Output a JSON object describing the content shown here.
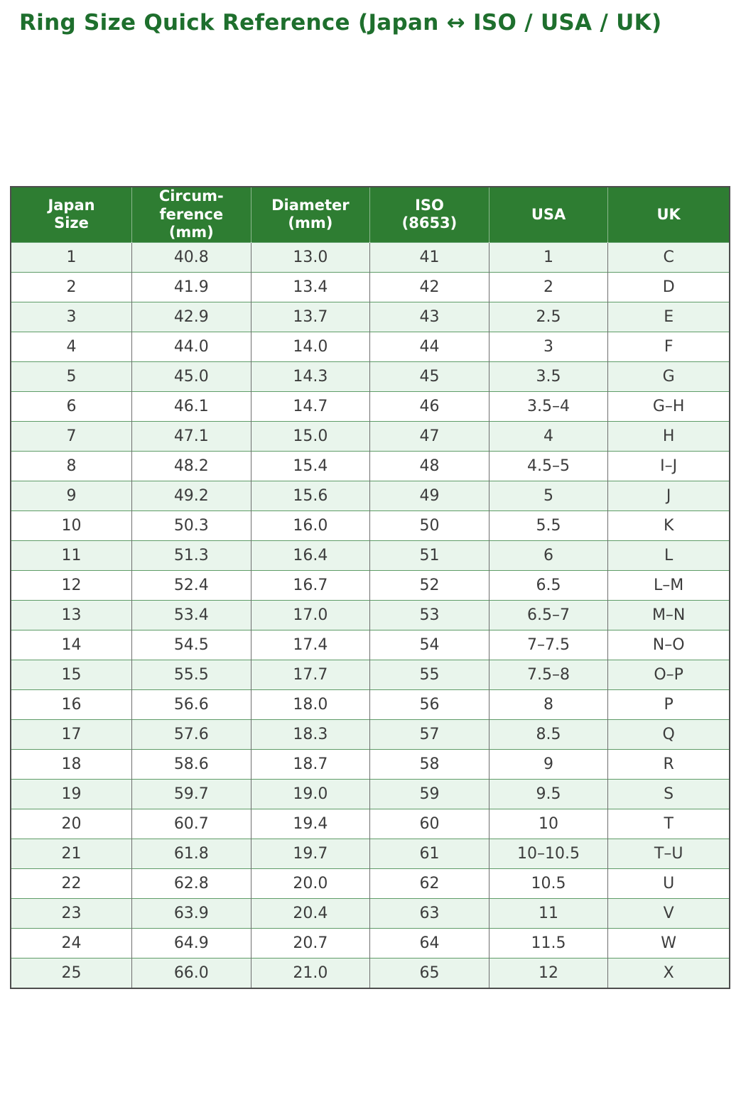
{
  "page": {
    "title": "Ring Size Quick Reference (Japan ↔ ISO / USA / UK)"
  },
  "colors": {
    "title_green": "#1e6f2d",
    "header_green": "#2e7d32",
    "row_alt_green": "#e9f5ec",
    "row_line_green": "#5f9c68",
    "cell_text": "#3c3c3c"
  },
  "chart_data": {
    "type": "table",
    "title": "Ring Size Quick Reference (Japan ↔ ISO / USA / UK)",
    "columns": [
      "Japan\nSize",
      "Circum-\nference\n(mm)",
      "Diameter\n(mm)",
      "ISO\n(8653)",
      "USA",
      "UK"
    ],
    "rows": [
      [
        "1",
        "40.8",
        "13.0",
        "41",
        "1",
        "C"
      ],
      [
        "2",
        "41.9",
        "13.4",
        "42",
        "2",
        "D"
      ],
      [
        "3",
        "42.9",
        "13.7",
        "43",
        "2.5",
        "E"
      ],
      [
        "4",
        "44.0",
        "14.0",
        "44",
        "3",
        "F"
      ],
      [
        "5",
        "45.0",
        "14.3",
        "45",
        "3.5",
        "G"
      ],
      [
        "6",
        "46.1",
        "14.7",
        "46",
        "3.5–4",
        "G–H"
      ],
      [
        "7",
        "47.1",
        "15.0",
        "47",
        "4",
        "H"
      ],
      [
        "8",
        "48.2",
        "15.4",
        "48",
        "4.5–5",
        "I–J"
      ],
      [
        "9",
        "49.2",
        "15.6",
        "49",
        "5",
        "J"
      ],
      [
        "10",
        "50.3",
        "16.0",
        "50",
        "5.5",
        "K"
      ],
      [
        "11",
        "51.3",
        "16.4",
        "51",
        "6",
        "L"
      ],
      [
        "12",
        "52.4",
        "16.7",
        "52",
        "6.5",
        "L–M"
      ],
      [
        "13",
        "53.4",
        "17.0",
        "53",
        "6.5–7",
        "M–N"
      ],
      [
        "14",
        "54.5",
        "17.4",
        "54",
        "7–7.5",
        "N–O"
      ],
      [
        "15",
        "55.5",
        "17.7",
        "55",
        "7.5–8",
        "O–P"
      ],
      [
        "16",
        "56.6",
        "18.0",
        "56",
        "8",
        "P"
      ],
      [
        "17",
        "57.6",
        "18.3",
        "57",
        "8.5",
        "Q"
      ],
      [
        "18",
        "58.6",
        "18.7",
        "58",
        "9",
        "R"
      ],
      [
        "19",
        "59.7",
        "19.0",
        "59",
        "9.5",
        "S"
      ],
      [
        "20",
        "60.7",
        "19.4",
        "60",
        "10",
        "T"
      ],
      [
        "21",
        "61.8",
        "19.7",
        "61",
        "10–10.5",
        "T–U"
      ],
      [
        "22",
        "62.8",
        "20.0",
        "62",
        "10.5",
        "U"
      ],
      [
        "23",
        "63.9",
        "20.4",
        "63",
        "11",
        "V"
      ],
      [
        "24",
        "64.9",
        "20.7",
        "64",
        "11.5",
        "W"
      ],
      [
        "25",
        "66.0",
        "21.0",
        "65",
        "12",
        "X"
      ]
    ]
  }
}
